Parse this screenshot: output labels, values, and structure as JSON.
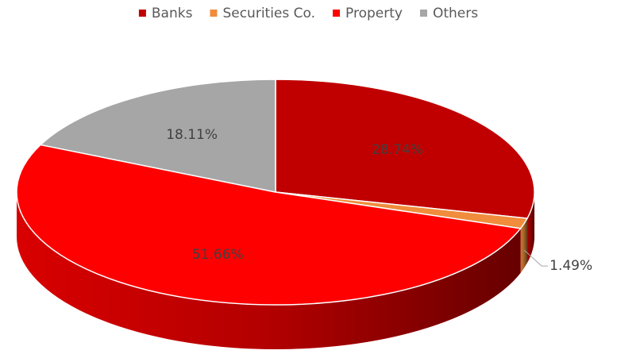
{
  "chart_data": {
    "type": "pie3d",
    "categories": [
      "Banks",
      "Securities Co.",
      "Property",
      "Others"
    ],
    "values": [
      28.74,
      1.49,
      51.66,
      18.11
    ],
    "value_labels": [
      "28.74%",
      "1.49%",
      "51.66%",
      "18.11%"
    ],
    "colors": [
      "#c00000",
      "#f08c3c",
      "#ff0000",
      "#a6a6a6"
    ],
    "legend": "top"
  }
}
